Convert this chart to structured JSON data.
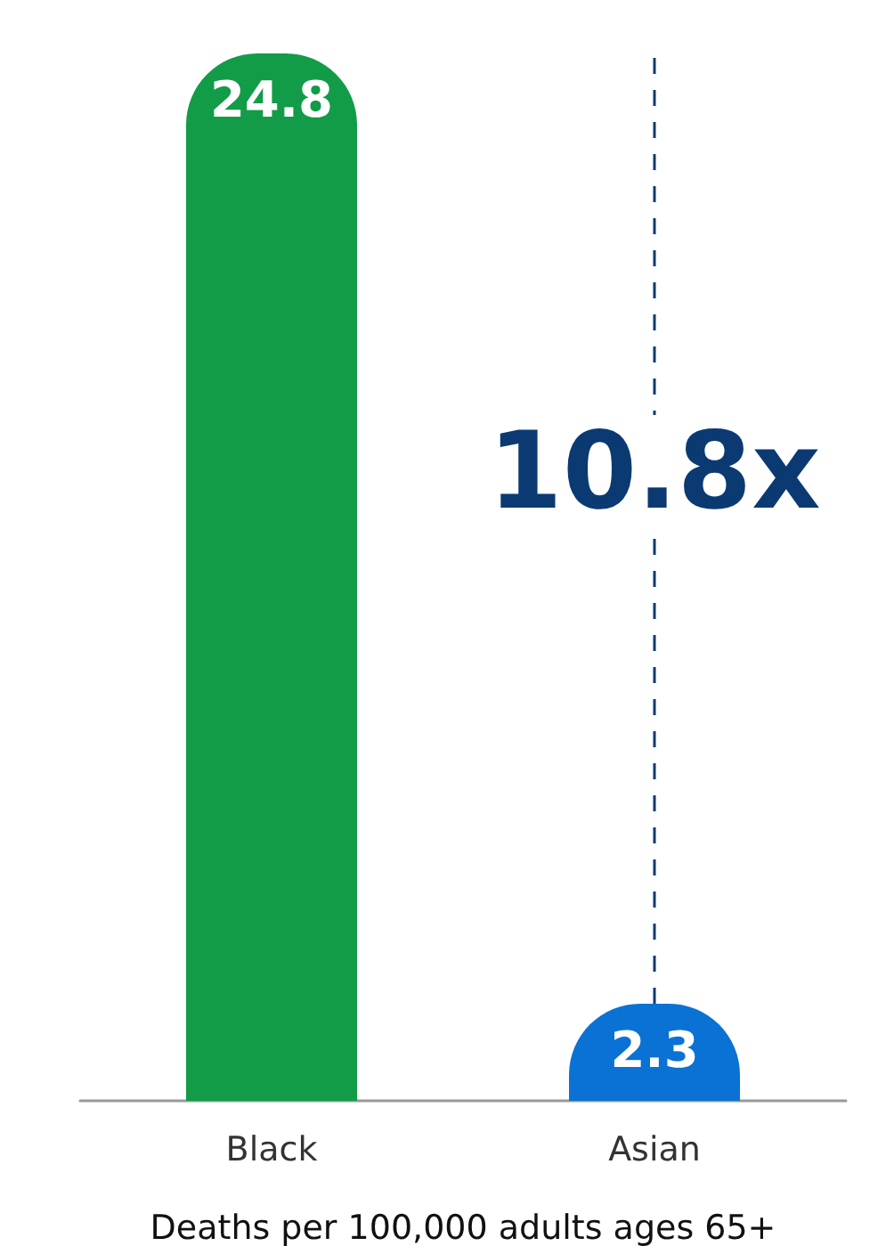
{
  "chart_data": {
    "type": "bar",
    "categories": [
      "Black",
      "Asian"
    ],
    "colors": [
      "#129c48",
      "#0a72d4"
    ],
    "values": [
      24.8,
      2.3
    ],
    "data_labels": true,
    "xlabel": "Deaths per 100,000 adults ages 65+",
    "annotations": [
      "10.8x"
    ],
    "series": [
      {
        "type": "line",
        "x": [
          "Asian",
          "Asian"
        ],
        "values": [
          2.3,
          24.8
        ],
        "color": "#0b3a73",
        "value_labels": [
          null,
          null
        ],
        "line_style": "dashed",
        "marker": "none"
      }
    ]
  }
}
